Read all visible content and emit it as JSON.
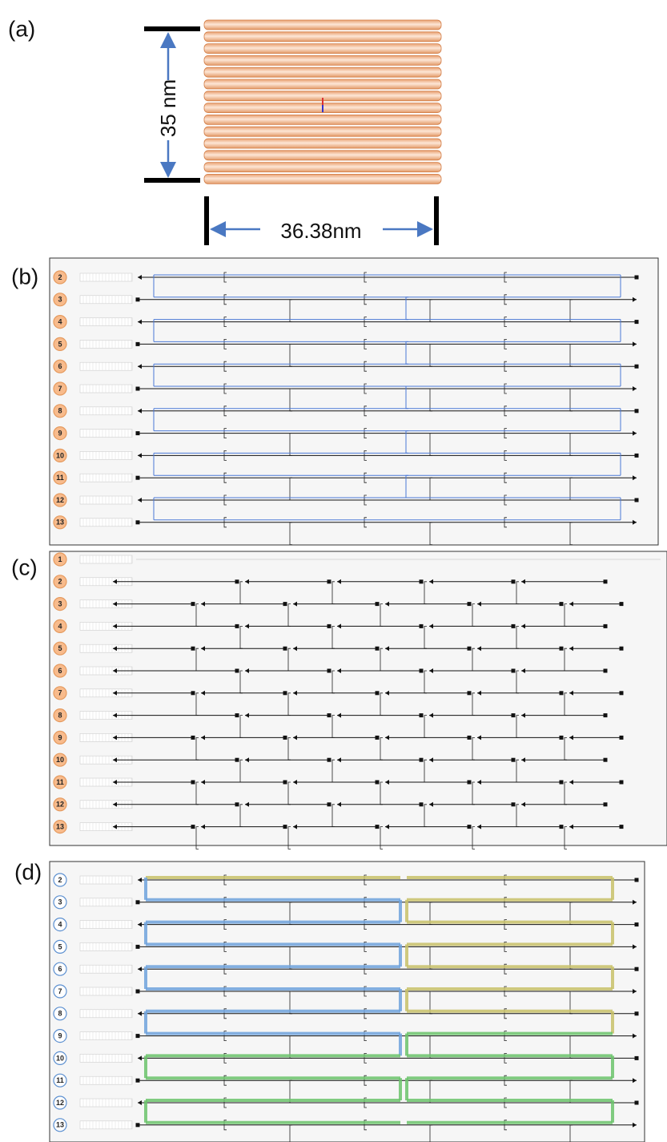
{
  "panel_a": {
    "label": "(a)",
    "height_label": "35 nm",
    "width_label": "36.38nm"
  },
  "panel_b": {
    "label": "(b)",
    "helices": [
      2,
      3,
      4,
      5,
      6,
      7,
      8,
      9,
      10,
      11,
      12,
      13
    ]
  },
  "panel_c": {
    "label": "(c)",
    "helices": [
      1,
      2,
      3,
      4,
      5,
      6,
      7,
      8,
      9,
      10,
      11,
      12,
      13
    ]
  },
  "panel_d": {
    "label": "(d)",
    "helices": [
      2,
      3,
      4,
      5,
      6,
      7,
      8,
      9,
      10,
      11,
      12,
      13
    ]
  }
}
